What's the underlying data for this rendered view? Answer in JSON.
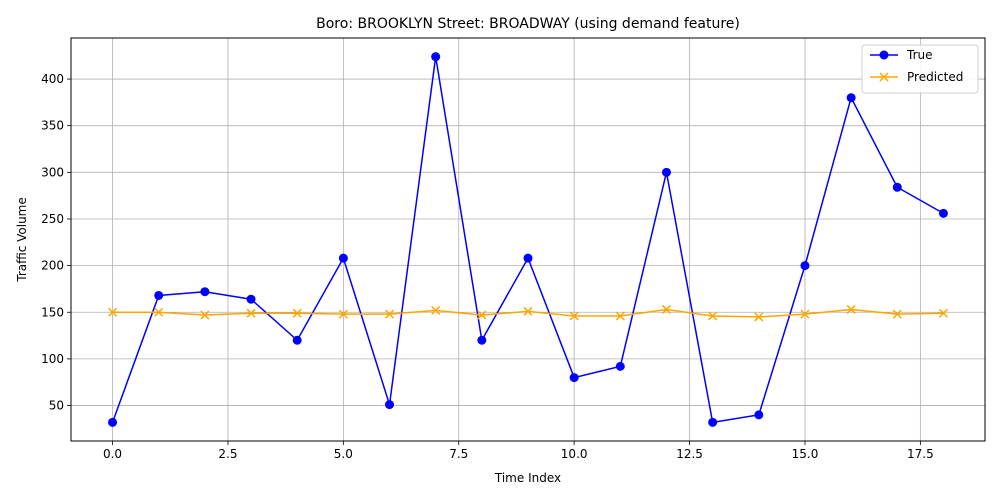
{
  "chart_data": {
    "type": "line",
    "title": "Boro: BROOKLYN Street: BROADWAY (using demand feature)",
    "xlabel": "Time Index",
    "ylabel": "Traffic Volume",
    "xlim": [
      -0.9,
      18.9
    ],
    "ylim": [
      12,
      444
    ],
    "x_ticks": [
      0.0,
      2.5,
      5.0,
      7.5,
      10.0,
      12.5,
      15.0,
      17.5
    ],
    "x_tick_labels": [
      "0.0",
      "2.5",
      "5.0",
      "7.5",
      "10.0",
      "12.5",
      "15.0",
      "17.5"
    ],
    "y_ticks": [
      50,
      100,
      150,
      200,
      250,
      300,
      350,
      400
    ],
    "y_tick_labels": [
      "50",
      "100",
      "150",
      "200",
      "250",
      "300",
      "350",
      "400"
    ],
    "grid": true,
    "legend_position": "top-right",
    "x": [
      0,
      1,
      2,
      3,
      4,
      5,
      6,
      7,
      8,
      9,
      10,
      11,
      12,
      13,
      14,
      15,
      16,
      17,
      18
    ],
    "series": [
      {
        "name": "True",
        "color": "#0000ff",
        "marker": "circle",
        "values": [
          32,
          168,
          172,
          164,
          120,
          208,
          51,
          424,
          120,
          208,
          80,
          92,
          300,
          32,
          40,
          200,
          380,
          284,
          256
        ]
      },
      {
        "name": "Predicted",
        "color": "#ffa500",
        "marker": "x",
        "values": [
          150,
          150,
          147,
          149,
          149,
          148,
          148,
          152,
          147,
          151,
          146,
          146,
          153,
          146,
          145,
          148,
          153,
          148,
          149
        ]
      }
    ]
  }
}
